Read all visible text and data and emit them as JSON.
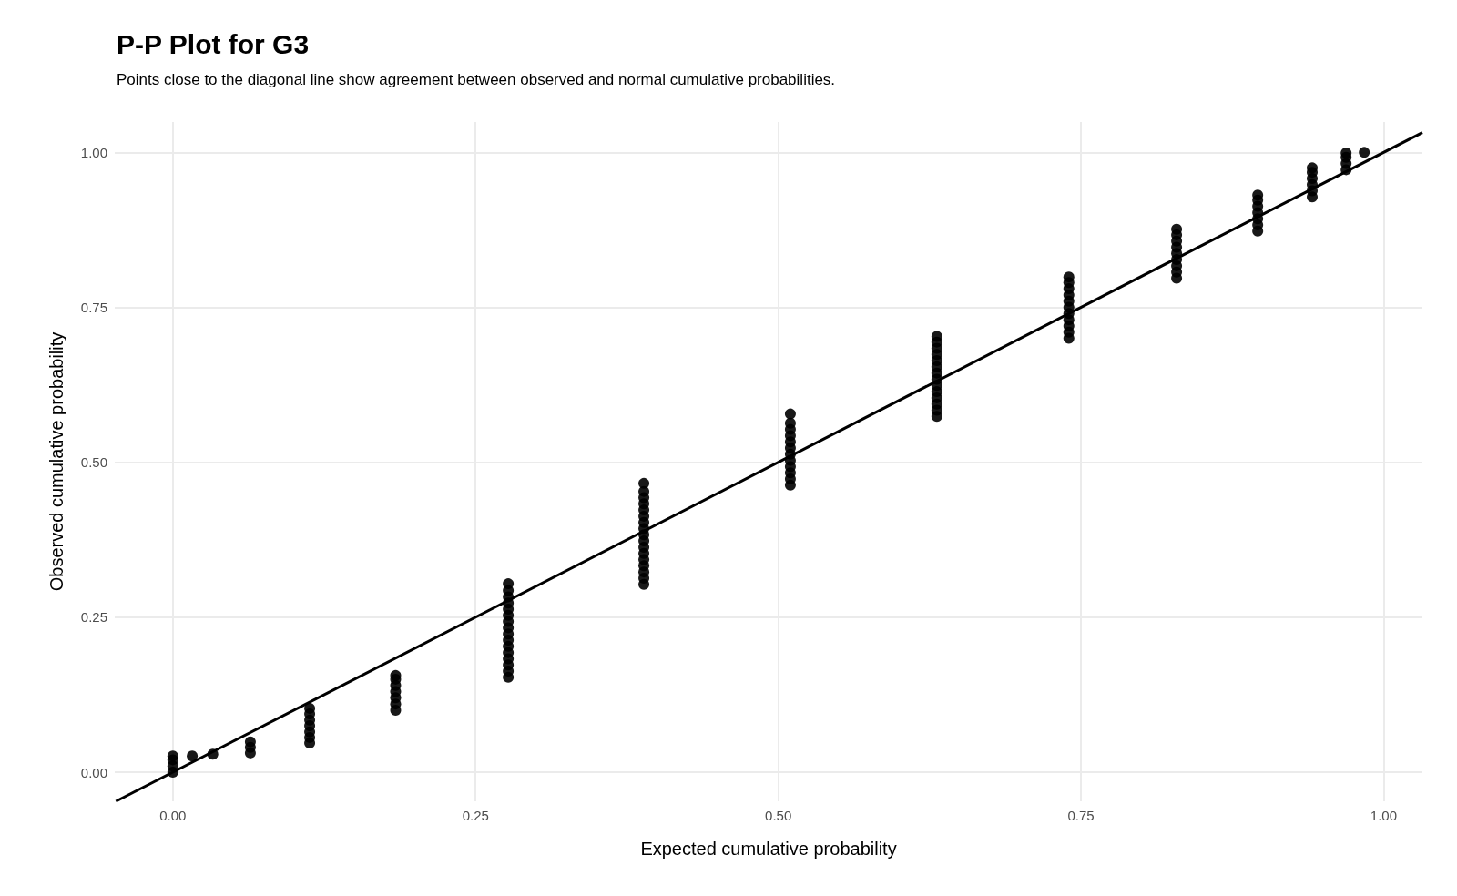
{
  "chart_data": {
    "type": "scatter",
    "title": "P-P Plot for G3",
    "subtitle": "Points close to the diagonal line show agreement between observed and normal cumulative probabilities.",
    "xlabel": "Expected cumulative probability",
    "ylabel": "Observed cumulative probability",
    "xlim": [
      -0.048,
      1.032
    ],
    "ylim": [
      -0.047,
      1.049
    ],
    "xticks": [
      {
        "value": 0,
        "label": "0.00"
      },
      {
        "value": 0.25,
        "label": "0.25"
      },
      {
        "value": 0.5,
        "label": "0.50"
      },
      {
        "value": 0.75,
        "label": "0.75"
      },
      {
        "value": 1,
        "label": "1.00"
      }
    ],
    "yticks": [
      {
        "value": 0,
        "label": "0.00"
      },
      {
        "value": 0.25,
        "label": "0.25"
      },
      {
        "value": 0.5,
        "label": "0.50"
      },
      {
        "value": 0.75,
        "label": "0.75"
      },
      {
        "value": 1,
        "label": "1.00"
      }
    ],
    "grid": true,
    "series": [
      {
        "color": "#000000",
        "marker": "circle",
        "x": [
          0,
          0,
          0,
          0,
          0.016,
          0.033,
          0.064,
          0.064,
          0.064,
          0.113,
          0.113,
          0.113,
          0.113,
          0.113,
          0.113,
          0.113,
          0.184,
          0.184,
          0.184,
          0.184,
          0.184,
          0.184,
          0.184,
          0.277,
          0.277,
          0.277,
          0.277,
          0.277,
          0.277,
          0.277,
          0.277,
          0.277,
          0.277,
          0.277,
          0.277,
          0.277,
          0.277,
          0.277,
          0.277,
          0.389,
          0.389,
          0.389,
          0.389,
          0.389,
          0.389,
          0.389,
          0.389,
          0.389,
          0.389,
          0.389,
          0.389,
          0.389,
          0.389,
          0.389,
          0.389,
          0.389,
          0.51,
          0.51,
          0.51,
          0.51,
          0.51,
          0.51,
          0.51,
          0.51,
          0.51,
          0.51,
          0.51,
          0.51,
          0.631,
          0.631,
          0.631,
          0.631,
          0.631,
          0.631,
          0.631,
          0.631,
          0.631,
          0.631,
          0.631,
          0.631,
          0.631,
          0.631,
          0.74,
          0.74,
          0.74,
          0.74,
          0.74,
          0.74,
          0.74,
          0.74,
          0.74,
          0.74,
          0.74,
          0.829,
          0.829,
          0.829,
          0.829,
          0.829,
          0.829,
          0.829,
          0.829,
          0.829,
          0.896,
          0.896,
          0.896,
          0.896,
          0.896,
          0.896,
          0.896,
          0.941,
          0.941,
          0.941,
          0.941,
          0.941,
          0.941,
          0.969,
          0.969,
          0.969,
          0.969,
          0.984
        ],
        "values": [
          0,
          0.01,
          0.02,
          0.026,
          0.026,
          0.029,
          0.031,
          0.04,
          0.049,
          0.047,
          0.056,
          0.065,
          0.075,
          0.084,
          0.094,
          0.103,
          0.1,
          0.11,
          0.12,
          0.13,
          0.14,
          0.15,
          0.156,
          0.153,
          0.163,
          0.173,
          0.183,
          0.193,
          0.203,
          0.213,
          0.223,
          0.233,
          0.243,
          0.253,
          0.263,
          0.273,
          0.283,
          0.293,
          0.304,
          0.303,
          0.313,
          0.323,
          0.333,
          0.343,
          0.353,
          0.363,
          0.373,
          0.383,
          0.393,
          0.403,
          0.413,
          0.423,
          0.433,
          0.443,
          0.453,
          0.466,
          0.463,
          0.473,
          0.483,
          0.493,
          0.503,
          0.513,
          0.523,
          0.533,
          0.543,
          0.553,
          0.563,
          0.578,
          0.574,
          0.584,
          0.594,
          0.604,
          0.614,
          0.624,
          0.634,
          0.644,
          0.654,
          0.664,
          0.674,
          0.684,
          0.694,
          0.703,
          0.7,
          0.71,
          0.72,
          0.73,
          0.74,
          0.75,
          0.76,
          0.77,
          0.78,
          0.79,
          0.799,
          0.797,
          0.807,
          0.817,
          0.827,
          0.837,
          0.847,
          0.857,
          0.867,
          0.876,
          0.873,
          0.883,
          0.893,
          0.903,
          0.913,
          0.923,
          0.931,
          0.928,
          0.938,
          0.948,
          0.958,
          0.968,
          0.975,
          0.972,
          0.982,
          0.992,
          0.999,
          1.0
        ]
      },
      {
        "type": "line",
        "color": "#000000",
        "marker": "none",
        "x": [
          -0.047,
          1.032
        ],
        "values": [
          -0.047,
          1.032
        ]
      }
    ]
  }
}
